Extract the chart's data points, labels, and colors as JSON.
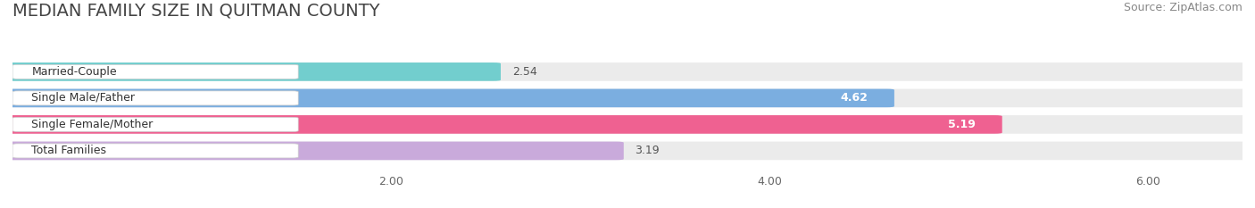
{
  "title": "MEDIAN FAMILY SIZE IN QUITMAN COUNTY",
  "source": "Source: ZipAtlas.com",
  "categories": [
    "Married-Couple",
    "Single Male/Father",
    "Single Female/Mother",
    "Total Families"
  ],
  "values": [
    2.54,
    4.62,
    5.19,
    3.19
  ],
  "bar_colors": [
    "#72CECE",
    "#7BAEE0",
    "#EF6191",
    "#C9AADB"
  ],
  "value_inside": [
    false,
    true,
    true,
    false
  ],
  "x_ticks": [
    2.0,
    4.0,
    6.0
  ],
  "x_min": 0,
  "x_max": 6.5,
  "background_color": "#ffffff",
  "bar_background_color": "#ebebeb",
  "title_fontsize": 14,
  "source_fontsize": 9,
  "label_fontsize": 9,
  "value_fontsize": 9,
  "tick_fontsize": 9
}
